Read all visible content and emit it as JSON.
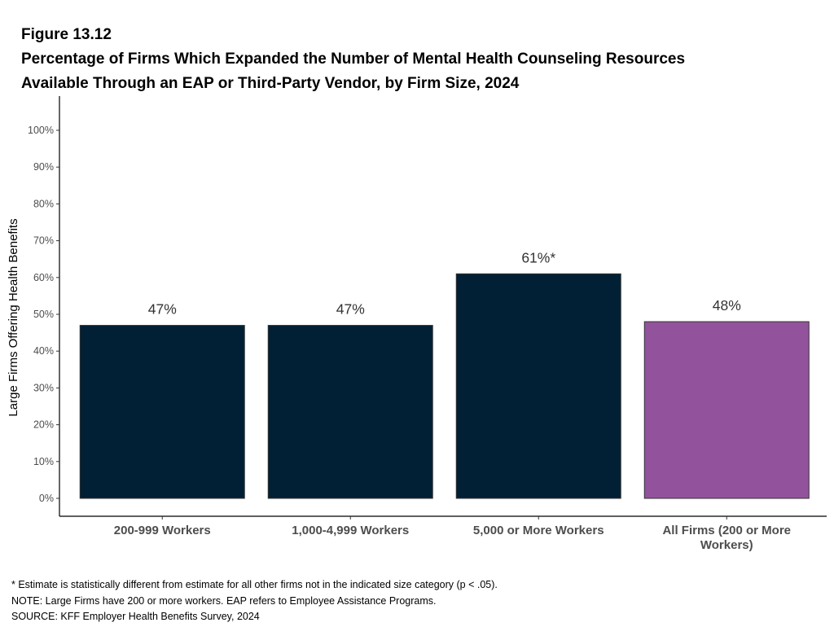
{
  "figure_label": "Figure 13.12",
  "chart_data": {
    "type": "bar",
    "title_lines": [
      "Percentage of Firms Which Expanded the Number of Mental Health Counseling Resources",
      "Available Through an EAP or Third-Party Vendor, by Firm Size, 2024"
    ],
    "ylabel": "Large Firms Offering Health Benefits",
    "xlabel": "",
    "ylim": [
      0,
      100
    ],
    "yticks": [
      "0%",
      "10%",
      "20%",
      "30%",
      "40%",
      "50%",
      "60%",
      "70%",
      "80%",
      "90%",
      "100%"
    ],
    "categories": [
      [
        "200-999 Workers"
      ],
      [
        "1,000-4,999 Workers"
      ],
      [
        "5,000 or More Workers"
      ],
      [
        "All Firms (200 or More",
        "Workers)"
      ]
    ],
    "values": [
      47,
      47,
      61,
      48
    ],
    "data_labels": [
      "47%",
      "47%",
      "61%*",
      "48%"
    ],
    "colors": [
      "#011f35",
      "#011f35",
      "#011f35",
      "#93529c"
    ],
    "grid": false,
    "legend": "none"
  },
  "notes": [
    "* Estimate is statistically different from estimate for all other firms not in the indicated size category (p < .05).",
    "NOTE: Large Firms have 200 or more workers.  EAP refers to Employee Assistance Programs.",
    "SOURCE: KFF Employer Health Benefits Survey, 2024"
  ]
}
